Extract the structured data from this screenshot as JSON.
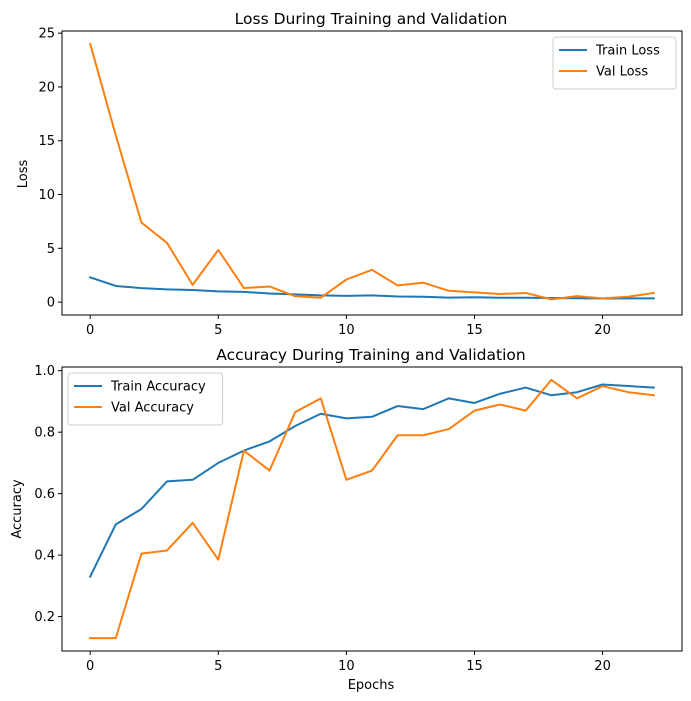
{
  "chart_data": [
    {
      "type": "line",
      "title": "Loss During Training and Validation",
      "xlabel": "",
      "ylabel": "Loss",
      "xlim": [
        -1.1,
        23.1
      ],
      "ylim": [
        -1.2,
        25.2
      ],
      "xticks": [
        0,
        5,
        10,
        15,
        20
      ],
      "yticks": [
        0,
        5,
        10,
        15,
        20,
        25
      ],
      "grid": false,
      "legend": "upper right",
      "x": [
        0,
        1,
        2,
        3,
        4,
        5,
        6,
        7,
        8,
        9,
        10,
        11,
        12,
        13,
        14,
        15,
        16,
        17,
        18,
        19,
        20,
        21,
        22
      ],
      "series": [
        {
          "name": "Train Loss",
          "color": "#1f77b4",
          "values": [
            2.3,
            1.5,
            1.3,
            1.18,
            1.12,
            1.0,
            0.95,
            0.8,
            0.72,
            0.62,
            0.58,
            0.62,
            0.52,
            0.5,
            0.42,
            0.45,
            0.4,
            0.4,
            0.38,
            0.36,
            0.33,
            0.34,
            0.35
          ]
        },
        {
          "name": "Val Loss",
          "color": "#ff7f0e",
          "values": [
            24.0,
            15.5,
            7.4,
            5.5,
            1.6,
            4.85,
            1.3,
            1.45,
            0.55,
            0.4,
            2.1,
            3.0,
            1.55,
            1.8,
            1.05,
            0.9,
            0.75,
            0.85,
            0.25,
            0.55,
            0.35,
            0.5,
            0.85
          ]
        }
      ]
    },
    {
      "type": "line",
      "title": "Accuracy During Training and Validation",
      "xlabel": "Epochs",
      "ylabel": "Accuracy",
      "xlim": [
        -1.1,
        23.1
      ],
      "ylim": [
        0.088,
        1.012
      ],
      "xticks": [
        0,
        5,
        10,
        15,
        20
      ],
      "yticks": [
        0.2,
        0.4,
        0.6,
        0.8,
        1.0
      ],
      "ytick_labels": [
        "0.2",
        "0.4",
        "0.6",
        "0.8",
        "1.0"
      ],
      "grid": false,
      "legend": "upper left",
      "x": [
        0,
        1,
        2,
        3,
        4,
        5,
        6,
        7,
        8,
        9,
        10,
        11,
        12,
        13,
        14,
        15,
        16,
        17,
        18,
        19,
        20,
        21,
        22
      ],
      "series": [
        {
          "name": "Train Accuracy",
          "color": "#1f77b4",
          "values": [
            0.33,
            0.5,
            0.55,
            0.64,
            0.645,
            0.7,
            0.74,
            0.77,
            0.82,
            0.86,
            0.845,
            0.85,
            0.885,
            0.875,
            0.91,
            0.895,
            0.925,
            0.945,
            0.92,
            0.93,
            0.955,
            0.95,
            0.945
          ]
        },
        {
          "name": "Val Accuracy",
          "color": "#ff7f0e",
          "values": [
            0.13,
            0.13,
            0.405,
            0.415,
            0.505,
            0.385,
            0.74,
            0.675,
            0.865,
            0.91,
            0.645,
            0.675,
            0.79,
            0.79,
            0.81,
            0.87,
            0.89,
            0.87,
            0.97,
            0.91,
            0.95,
            0.93,
            0.92
          ]
        }
      ]
    }
  ]
}
